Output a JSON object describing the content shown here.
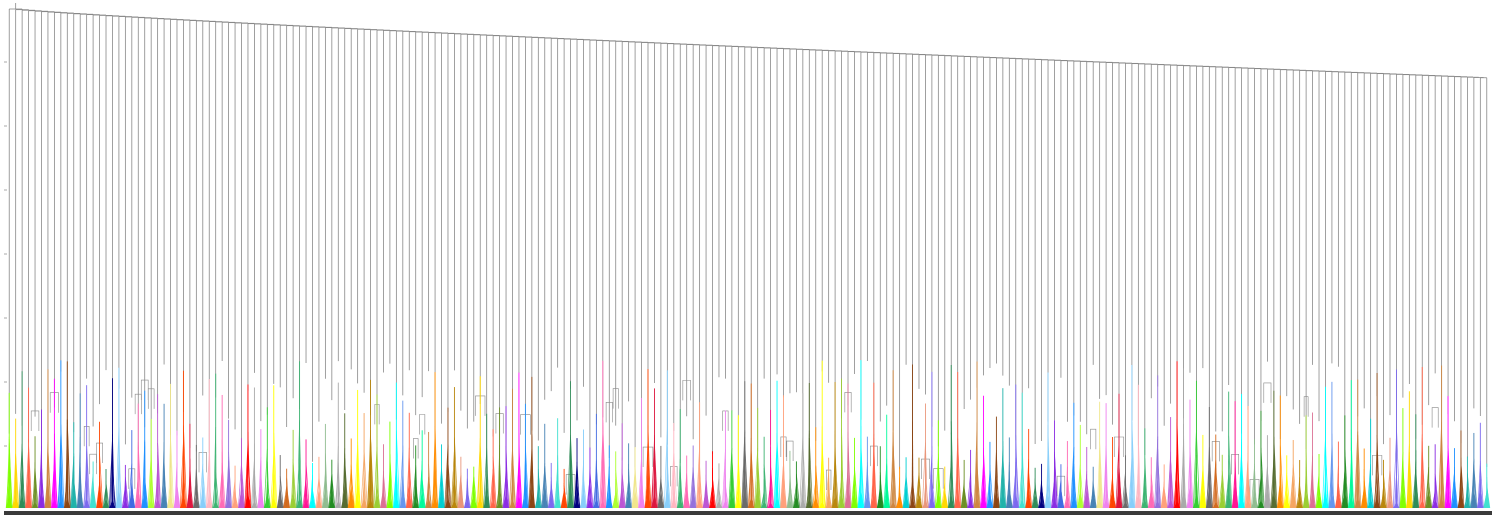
{
  "diagram": {
    "type": "dendrogram",
    "orientation": "top-down",
    "axis_labels_visible": false,
    "leaf_labels_visible": false,
    "link_color": "#888888",
    "base_bar_color": "#3a3a3a",
    "cluster_count": 230,
    "palette": [
      "#7fff00",
      "#ff1493",
      "#ff69b4",
      "#ff00ff",
      "#ff8c00",
      "#32cd32",
      "#ff4500",
      "#ffd700",
      "#00ffff",
      "#9370db",
      "#1e90ff",
      "#00ced1",
      "#ffff00",
      "#dc143c",
      "#2e8b57",
      "#6495ed",
      "#ffa07a",
      "#adff2f",
      "#8b4513",
      "#f4a460",
      "#696969",
      "#000080",
      "#ff6347",
      "#8fbc8f",
      "#ba55d3",
      "#20b2aa",
      "#b8860b",
      "#d2691e",
      "#87cefa",
      "#6b8e23",
      "#228b22",
      "#ff0000",
      "#4682b4",
      "#e9967a",
      "#9acd32",
      "#ffb6c1",
      "#8a2be2",
      "#00fa9a",
      "#a9a9a9",
      "#f0e68c",
      "#7b68ee",
      "#db7093",
      "#3cb371",
      "#4169e1",
      "#cd853f",
      "#556b2f",
      "#ee82ee",
      "#40e0d0"
    ]
  }
}
